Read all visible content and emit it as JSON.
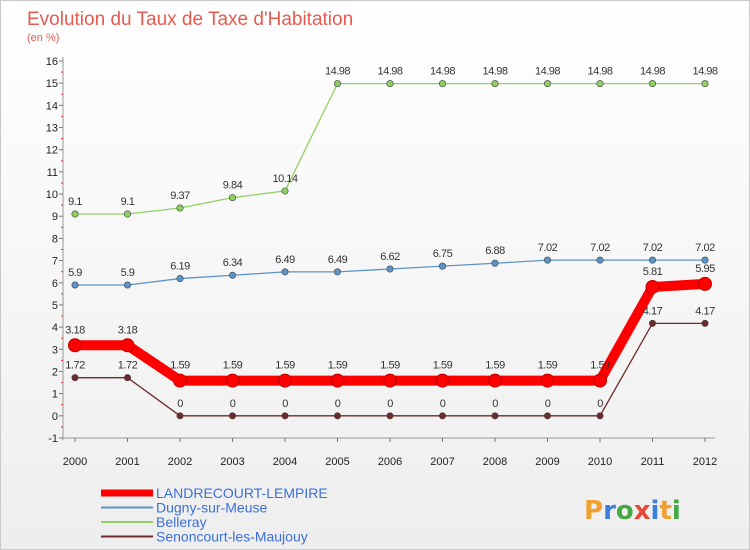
{
  "chart_data": {
    "type": "line",
    "title": "Evolution du Taux de Taxe d'Habitation",
    "subtitle": "(en %)",
    "x": [
      "2000",
      "2001",
      "2002",
      "2003",
      "2004",
      "2005",
      "2006",
      "2007",
      "2008",
      "2009",
      "2010",
      "2011",
      "2012"
    ],
    "y_ticks": [
      "-1",
      "0",
      "1",
      "2",
      "3",
      "4",
      "5",
      "6",
      "7",
      "8",
      "9",
      "10",
      "11",
      "12",
      "13",
      "14",
      "15",
      "16"
    ],
    "ylim": [
      -1,
      16
    ],
    "grid": false,
    "legend_position": "bottom-left",
    "series": [
      {
        "name": "LANDRECOURT-LEMPIRE",
        "color": "#ff0000",
        "values": [
          3.18,
          3.18,
          1.59,
          1.59,
          1.59,
          1.59,
          1.59,
          1.59,
          1.59,
          1.59,
          1.59,
          5.81,
          5.95
        ],
        "labels": [
          "3.18",
          "3.18",
          "1.59",
          "1.59",
          "1.59",
          "1.59",
          "1.59",
          "1.59",
          "1.59",
          "1.59",
          "1.59",
          "5.81",
          "5.95"
        ]
      },
      {
        "name": "Dugny-sur-Meuse",
        "color": "#5b94c8",
        "values": [
          5.9,
          5.9,
          6.19,
          6.34,
          6.49,
          6.49,
          6.62,
          6.75,
          6.88,
          7.02,
          7.02,
          7.02,
          7.02
        ],
        "labels": [
          "5.9",
          "5.9",
          "6.19",
          "6.34",
          "6.49",
          "6.49",
          "6.62",
          "6.75",
          "6.88",
          "7.02",
          "7.02",
          "7.02",
          "7.02"
        ]
      },
      {
        "name": "Belleray",
        "color": "#8fd160",
        "values": [
          9.1,
          9.1,
          9.37,
          9.84,
          10.14,
          14.98,
          14.98,
          14.98,
          14.98,
          14.98,
          14.98,
          14.98,
          14.98
        ],
        "labels": [
          "9.1",
          "9.1",
          "9.37",
          "9.84",
          "10.14",
          "14.98",
          "14.98",
          "14.98",
          "14.98",
          "14.98",
          "14.98",
          "14.98",
          "14.98"
        ]
      },
      {
        "name": "Senoncourt-les-Maujouy",
        "color": "#6e2a2a",
        "values": [
          1.72,
          1.72,
          0,
          0,
          0,
          0,
          0,
          0,
          0,
          0,
          0,
          4.17,
          4.17
        ],
        "labels": [
          "1.72",
          "1.72",
          "0",
          "0",
          "0",
          "0",
          "0",
          "0",
          "0",
          "0",
          "0",
          "4.17",
          "4.17"
        ]
      }
    ]
  },
  "brand": {
    "text": "Proxiti"
  }
}
